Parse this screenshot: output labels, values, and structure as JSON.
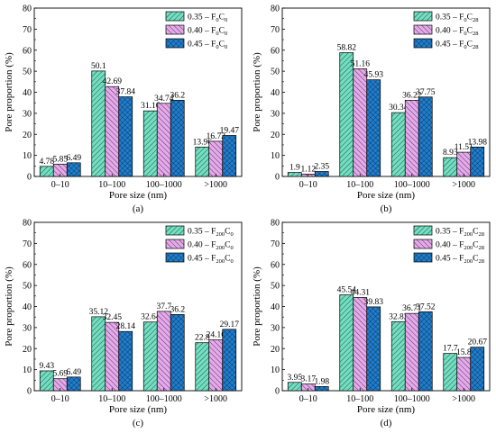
{
  "colors": {
    "s035": "#6fe0c2",
    "s040": "#e8a8ee",
    "s045": "#1a80d6"
  },
  "chart_data": [
    {
      "type": "bar",
      "caption": "(a)",
      "xlabel": "Pore size (nm)",
      "ylabel": "Pore proportion (%)",
      "ylim": [
        0,
        80
      ],
      "yticks": [
        0,
        10,
        20,
        30,
        40,
        50,
        60,
        70,
        80
      ],
      "categories": [
        "0–10",
        "10–100",
        "100–1000",
        ">1000"
      ],
      "legend_position": "top-right",
      "series": [
        {
          "name": "0.35 – F0C0",
          "legend": {
            "prefix": "0.35 – F",
            "sub1": "0",
            "mid": "C",
            "sub2": "0"
          },
          "values": [
            4.78,
            50.1,
            31.16,
            13.96
          ],
          "labels": [
            "4.78",
            "50.1",
            "31.16",
            "13.96"
          ]
        },
        {
          "name": "0.40 – F0C0",
          "legend": {
            "prefix": "0.40 – F",
            "sub1": "0",
            "mid": "C",
            "sub2": "0"
          },
          "values": [
            5.85,
            42.69,
            34.74,
            16.72
          ],
          "labels": [
            "5.85",
            "42.69",
            "34.74",
            "16.72"
          ]
        },
        {
          "name": "0.45 – F0C0",
          "legend": {
            "prefix": "0.45 – F",
            "sub1": "0",
            "mid": "C",
            "sub2": "0"
          },
          "values": [
            6.49,
            37.84,
            36.2,
            19.47
          ],
          "labels": [
            "6.49",
            "37.84",
            "36.2",
            "19.47"
          ]
        }
      ]
    },
    {
      "type": "bar",
      "caption": "(b)",
      "xlabel": "Pore size (nm)",
      "ylabel": "Pore proportion (%)",
      "ylim": [
        0,
        80
      ],
      "yticks": [
        0,
        10,
        20,
        30,
        40,
        50,
        60,
        70,
        80
      ],
      "categories": [
        "0–10",
        "10–100",
        "100–1000",
        ">1000"
      ],
      "legend_position": "top-right",
      "series": [
        {
          "name": "0.35 – F0C28",
          "legend": {
            "prefix": "0.35 – F",
            "sub1": "0",
            "mid": "C",
            "sub2": "28"
          },
          "values": [
            1.9,
            58.82,
            30.34,
            8.93
          ],
          "labels": [
            "1.9",
            "58.82",
            "30.34",
            "8.93"
          ]
        },
        {
          "name": "0.40 – F0C28",
          "legend": {
            "prefix": "0.40 – F",
            "sub1": "0",
            "mid": "C",
            "sub2": "28"
          },
          "values": [
            1.12,
            51.16,
            36.22,
            11.51
          ],
          "labels": [
            "1.12",
            "51.16",
            "36.22",
            "11.51"
          ]
        },
        {
          "name": "0.45 – F0C28",
          "legend": {
            "prefix": "0.45 – F",
            "sub1": "0",
            "mid": "C",
            "sub2": "28"
          },
          "values": [
            2.35,
            45.93,
            37.75,
            13.98
          ],
          "labels": [
            "2.35",
            "45.93",
            "37.75",
            "13.98"
          ]
        }
      ]
    },
    {
      "type": "bar",
      "caption": "(c)",
      "xlabel": "Pore size (nm)",
      "ylabel": "Pore proportion (%)",
      "ylim": [
        0,
        80
      ],
      "yticks": [
        0,
        10,
        20,
        30,
        40,
        50,
        60,
        70,
        80
      ],
      "categories": [
        "0–10",
        "10–100",
        "100–1000",
        ">1000"
      ],
      "legend_position": "top-right",
      "series": [
        {
          "name": "0.35 – F200C0",
          "legend": {
            "prefix": "0.35 – F",
            "sub1": "200",
            "mid": "C",
            "sub2": "0"
          },
          "values": [
            9.43,
            35.12,
            32.64,
            22.8
          ],
          "labels": [
            "9.43",
            "35.12",
            "32.64",
            "22.8"
          ]
        },
        {
          "name": "0.40 – F200C0",
          "legend": {
            "prefix": "0.40 – F",
            "sub1": "200",
            "mid": "C",
            "sub2": "0"
          },
          "values": [
            5.69,
            32.45,
            37.7,
            24.16
          ],
          "labels": [
            "5.69",
            "32.45",
            "37.7",
            "24.16"
          ]
        },
        {
          "name": "0.45 – F200C0",
          "legend": {
            "prefix": "0.45 – F",
            "sub1": "200",
            "mid": "C",
            "sub2": "0"
          },
          "values": [
            6.49,
            28.14,
            36.2,
            29.17
          ],
          "labels": [
            "6.49",
            "28.14",
            "36.2",
            "29.17"
          ]
        }
      ]
    },
    {
      "type": "bar",
      "caption": "(d)",
      "xlabel": "Pore size (nm)",
      "ylabel": "Pore proportion (%)",
      "ylim": [
        0,
        80
      ],
      "yticks": [
        0,
        10,
        20,
        30,
        40,
        50,
        60,
        70,
        80
      ],
      "categories": [
        "0–10",
        "10–100",
        "100–1000",
        ">1000"
      ],
      "legend_position": "top-right",
      "series": [
        {
          "name": "0.35 – F200C28",
          "legend": {
            "prefix": "0.35 – F",
            "sub1": "200",
            "mid": "C",
            "sub2": "28"
          },
          "values": [
            3.95,
            45.54,
            32.82,
            17.7
          ],
          "labels": [
            "3.95",
            "45.54",
            "32.82",
            "17.7"
          ]
        },
        {
          "name": "0.40 – F200C28",
          "legend": {
            "prefix": "0.40 – F",
            "sub1": "200",
            "mid": "C",
            "sub2": "28"
          },
          "values": [
            3.17,
            44.31,
            36.71,
            15.8
          ],
          "labels": [
            "3.17",
            "44.31",
            "36.71",
            "15.8"
          ]
        },
        {
          "name": "0.45 – F200C28",
          "legend": {
            "prefix": "0.45 – F",
            "sub1": "200",
            "mid": "C",
            "sub2": "28"
          },
          "values": [
            1.98,
            39.83,
            37.52,
            20.67
          ],
          "labels": [
            "1.98",
            "39.83",
            "37.52",
            "20.67"
          ]
        }
      ]
    }
  ]
}
